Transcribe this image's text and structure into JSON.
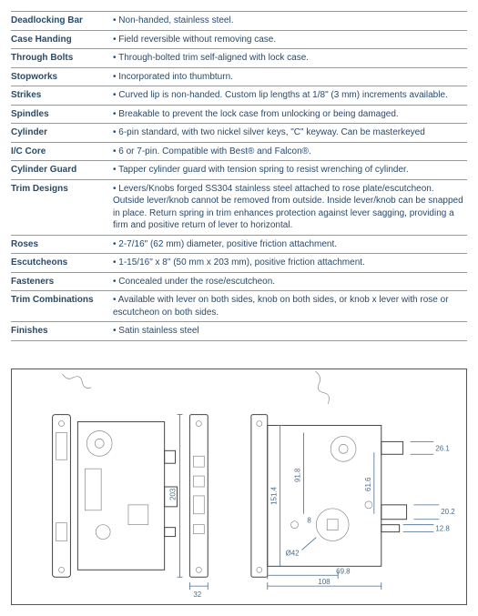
{
  "specs": [
    {
      "label": "Deadlocking Bar",
      "value": "• Non-handed, stainless steel."
    },
    {
      "label": "Case Handing",
      "value": "• Field reversible without removing case."
    },
    {
      "label": "Through Bolts",
      "value": "• Through-bolted trim self-aligned with lock case."
    },
    {
      "label": "Stopworks",
      "value": "• Incorporated into thumbturn."
    },
    {
      "label": "Strikes",
      "value": "• Curved lip is non-handed. Custom lip lengths at 1/8\" (3 mm) increments available."
    },
    {
      "label": "Spindles",
      "value": "• Breakable to prevent the lock case from unlocking or being damaged."
    },
    {
      "label": "Cylinder",
      "value": "• 6-pin standard, with two nickel silver keys, \"C\" keyway. Can be masterkeyed"
    },
    {
      "label": "I/C Core",
      "value": "• 6 or 7-pin. Compatible with Best® and Falcon®."
    },
    {
      "label": "Cylinder Guard",
      "value": "• Tapper cylinder guard with tension spring to resist wrenching of cylinder."
    },
    {
      "label": "Trim Designs",
      "value": "• Levers/Knobs forged SS304 stainless steel attached to rose plate/escutcheon. Outside lever/knob cannot be removed from outside. Inside lever/knob can be snapped in place. Return spring in trim enhances protection against lever sagging, providing a firm and positive return of lever to horizontal."
    },
    {
      "label": "Roses",
      "value": "• 2-7/16\" (62 mm) diameter, positive friction attachment."
    },
    {
      "label": "Escutcheons",
      "value": "• 1-15/16\" x 8\" (50 mm x 203 mm), positive friction attachment."
    },
    {
      "label": "Fasteners",
      "value": "• Concealed under the rose/escutcheon."
    },
    {
      "label": "Trim Combinations",
      "value": "• Available with lever on both sides, knob on both sides, or knob x lever with rose or escutcheon on both sides."
    },
    {
      "label": "Finishes",
      "value": "• Satin stainless steel"
    }
  ],
  "diagram": {
    "type": "engineering-drawing",
    "dimensions": {
      "faceplate_height": "203",
      "faceplate_width": "32",
      "body_height": "151.4",
      "body_upper": "91.8",
      "body_lower": "8",
      "body_right_depth": "61.6",
      "dim_261": "26.1",
      "dim_202": "20.2",
      "dim_128": "12.8",
      "backset": "69.8",
      "case_depth": "108",
      "hub_dia": "Ø42"
    },
    "colors": {
      "stroke": "#444444",
      "dim": "#4a6a8a",
      "bg": "#ffffff"
    }
  }
}
